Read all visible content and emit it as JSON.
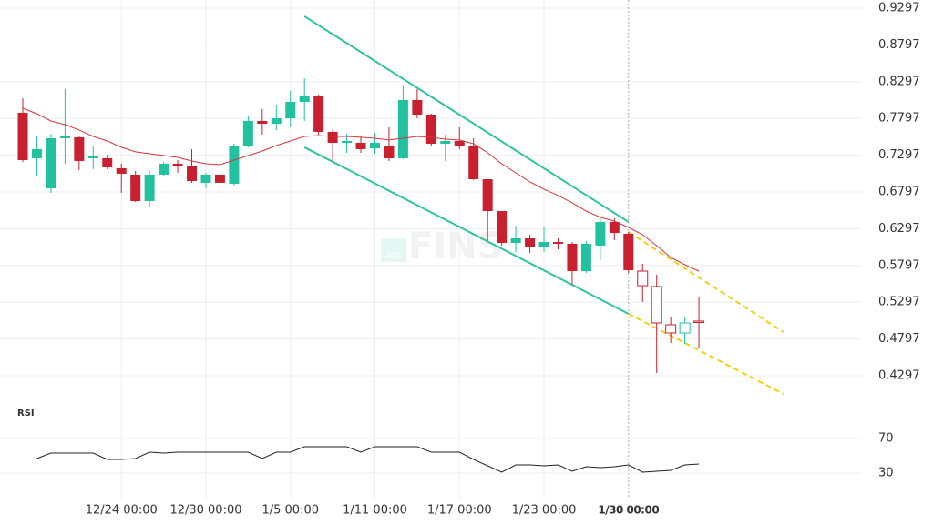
{
  "chart_data": {
    "type": "candlestick",
    "categories": [
      null,
      null,
      null,
      null,
      null,
      null,
      null,
      "12/24 00:00",
      null,
      null,
      null,
      null,
      null,
      "12/30 00:00",
      null,
      null,
      null,
      null,
      null,
      "1/5 00:00",
      null,
      null,
      null,
      null,
      null,
      "1/11 00:00",
      null,
      null,
      null,
      null,
      null,
      "1/17 00:00",
      null,
      null,
      null,
      null,
      null,
      "1/23 00:00",
      null,
      null,
      null,
      null,
      null,
      "1/30 00:00",
      null,
      null,
      null,
      null,
      null
    ],
    "open": [
      0.7874,
      0.7255,
      0.6846,
      0.7527,
      0.754,
      0.7255,
      0.7255,
      0.7119,
      0.7032,
      0.6673,
      0.7032,
      0.7181,
      0.7144,
      0.6921,
      0.7032,
      0.6908,
      0.7428,
      0.7763,
      0.7725,
      0.7799,
      0.8022,
      0.8097,
      0.7614,
      0.7465,
      0.7465,
      0.7391,
      0.7428,
      0.7255,
      0.8047,
      0.7849,
      0.7453,
      0.749,
      0.7428,
      0.697,
      0.6537,
      0.6104,
      0.6166,
      0.6042,
      0.6116,
      0.6092,
      0.572,
      0.6067,
      0.6389,
      0.6228,
      0.572,
      0.551,
      0.499,
      0.4879,
      0.504
    ],
    "high": [
      0.8072,
      0.7552,
      0.7589,
      0.8196,
      0.7552,
      0.7428,
      0.7304,
      0.7181,
      0.7082,
      0.7082,
      0.7206,
      0.723,
      0.7379,
      0.7057,
      0.7082,
      0.7453,
      0.7837,
      0.7923,
      0.7985,
      0.8171,
      0.8344,
      0.8121,
      0.7651,
      0.7589,
      0.7552,
      0.7602,
      0.7676,
      0.8233,
      0.8196,
      0.7862,
      0.7577,
      0.7676,
      0.7527,
      0.697,
      0.6537,
      0.6339,
      0.6215,
      0.6314,
      0.6166,
      0.6116,
      0.6129,
      0.6438,
      0.6438,
      0.6253,
      0.5819,
      0.5671,
      0.5101,
      0.5101,
      0.5361
    ],
    "low": [
      0.7205,
      0.702,
      0.6785,
      0.7181,
      0.7094,
      0.7107,
      0.7107,
      0.6785,
      0.6661,
      0.6599,
      0.7007,
      0.7057,
      0.6921,
      0.6846,
      0.6785,
      0.6884,
      0.7404,
      0.7577,
      0.7639,
      0.7676,
      0.7763,
      0.7577,
      0.7218,
      0.7329,
      0.7329,
      0.7317,
      0.7218,
      0.7243,
      0.7799,
      0.7428,
      0.7218,
      0.7379,
      0.6958,
      0.6129,
      0.6067,
      0.598,
      0.5968,
      0.598,
      0.6017,
      0.5535,
      0.5696,
      0.5869,
      0.6141,
      0.5696,
      0.53,
      0.4334,
      0.4743,
      0.473,
      0.4681
    ],
    "close": [
      0.723,
      0.7379,
      0.7527,
      0.7552,
      0.7218,
      0.728,
      0.7131,
      0.7045,
      0.6673,
      0.7032,
      0.7181,
      0.7144,
      0.6945,
      0.7032,
      0.6921,
      0.7428,
      0.7763,
      0.7725,
      0.7799,
      0.8022,
      0.8097,
      0.7614,
      0.7465,
      0.749,
      0.7379,
      0.7465,
      0.7255,
      0.8047,
      0.7849,
      0.7453,
      0.749,
      0.7428,
      0.697,
      0.6537,
      0.6104,
      0.6166,
      0.6042,
      0.6116,
      0.6092,
      0.572,
      0.6092,
      0.6389,
      0.624,
      0.5733,
      0.5522,
      0.5015,
      0.4879,
      0.5015,
      0.5027
    ],
    "up_color": "#22c1a0",
    "down_color": "#c8202e",
    "ylim": [
      0.3963,
      0.9408
    ],
    "yticks": [
      0.9297,
      0.8797,
      0.8297,
      0.7797,
      0.7297,
      0.6797,
      0.6297,
      0.5797,
      0.5297,
      0.4797,
      0.4297
    ],
    "grid": true,
    "forecast_start": 44,
    "crosshair_index": 43,
    "watermark": "FINS",
    "watermark_badge": "ats",
    "ma": {
      "color": "#d8343c",
      "values": [
        0.7935,
        0.7861,
        0.7762,
        0.7713,
        0.7639,
        0.7552,
        0.749,
        0.7404,
        0.7342,
        0.7317,
        0.7292,
        0.7267,
        0.7218,
        0.7181,
        0.7168,
        0.723,
        0.7292,
        0.7354,
        0.7428,
        0.749,
        0.7552,
        0.7564,
        0.7552,
        0.7552,
        0.754,
        0.7527,
        0.7503,
        0.7527,
        0.7552,
        0.754,
        0.7515,
        0.7503,
        0.7453,
        0.7329,
        0.7181,
        0.7057,
        0.6933,
        0.6835,
        0.6748,
        0.6649,
        0.6537,
        0.6451,
        0.6401,
        0.6314,
        0.6215,
        0.6067,
        0.5906,
        0.5807,
        0.572
      ]
    },
    "trendlines": [
      {
        "color": "#2ec4a2",
        "dashed": false,
        "x": [
          20,
          43
        ],
        "y": [
          0.9186,
          0.6389
        ]
      },
      {
        "color": "#2ec4a2",
        "dashed": false,
        "x": [
          20,
          43
        ],
        "y": [
          0.7404,
          0.5139
        ]
      },
      {
        "color": "#f2d010",
        "dashed": true,
        "x": [
          43,
          54
        ],
        "y": [
          0.6253,
          0.4891
        ]
      },
      {
        "color": "#f2d010",
        "dashed": true,
        "x": [
          43,
          54
        ],
        "y": [
          0.5139,
          0.405
        ]
      }
    ],
    "rsi": {
      "title": "RSI",
      "color": "#222222",
      "ylim": [
        0,
        100
      ],
      "yticks": [
        70,
        30
      ],
      "values": [
        null,
        46.8,
        53.2,
        53.2,
        53.2,
        53.2,
        45.8,
        45.8,
        46.8,
        54.2,
        53.2,
        54.2,
        54.2,
        54.2,
        54.2,
        54.2,
        54.2,
        46.8,
        54.2,
        54.2,
        60.5,
        60.5,
        60.5,
        60.5,
        54.2,
        60.5,
        60.5,
        60.5,
        60.5,
        54.2,
        54.2,
        54.2,
        45.8,
        38.4,
        31.1,
        39.5,
        39.5,
        38.4,
        39.5,
        32.1,
        37.4,
        36.3,
        37.4,
        39.5,
        31.1,
        32.1,
        33.2,
        39.5,
        40.5
      ]
    }
  }
}
